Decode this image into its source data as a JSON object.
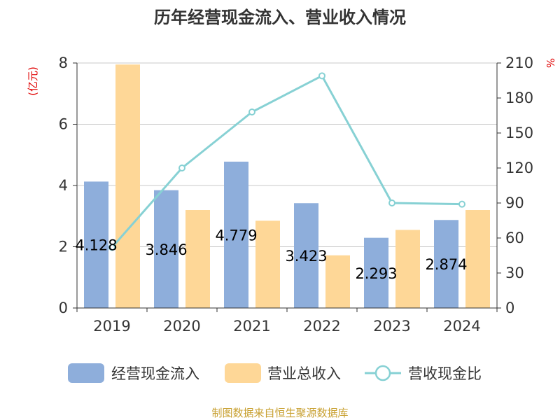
{
  "chart_data": {
    "type": "bar",
    "title": "历年经营现金流入、营业收入情况",
    "categories": [
      "2019",
      "2020",
      "2021",
      "2022",
      "2023",
      "2024"
    ],
    "series": [
      {
        "name": "经营现金流入",
        "type": "bar",
        "axis": "left",
        "values": [
          4.128,
          3.846,
          4.779,
          3.423,
          2.293,
          2.874
        ],
        "labels": [
          "4.128",
          "3.846",
          "4.779",
          "3.423",
          "2.293",
          "2.874"
        ],
        "color": "#8eaedb"
      },
      {
        "name": "营业总收入",
        "type": "bar",
        "axis": "left",
        "values": [
          7.95,
          3.2,
          2.85,
          1.72,
          2.55,
          3.2
        ],
        "color": "#fed797"
      },
      {
        "name": "营收现金比",
        "type": "line",
        "axis": "right",
        "values": [
          52,
          120,
          168,
          199,
          90,
          89
        ],
        "color": "#87d1d4"
      }
    ],
    "y_left": {
      "label": "(亿元)",
      "ylim": [
        0,
        8
      ],
      "ticks": [
        "0",
        "2",
        "4",
        "6",
        "8"
      ]
    },
    "y_right": {
      "label": "%",
      "ylim": [
        0,
        210
      ],
      "ticks": [
        "0",
        "30",
        "60",
        "90",
        "120",
        "150",
        "180",
        "210"
      ]
    },
    "grid": true,
    "legend_position": "bottom"
  },
  "footer": "制图数据来自恒生聚源数据库"
}
